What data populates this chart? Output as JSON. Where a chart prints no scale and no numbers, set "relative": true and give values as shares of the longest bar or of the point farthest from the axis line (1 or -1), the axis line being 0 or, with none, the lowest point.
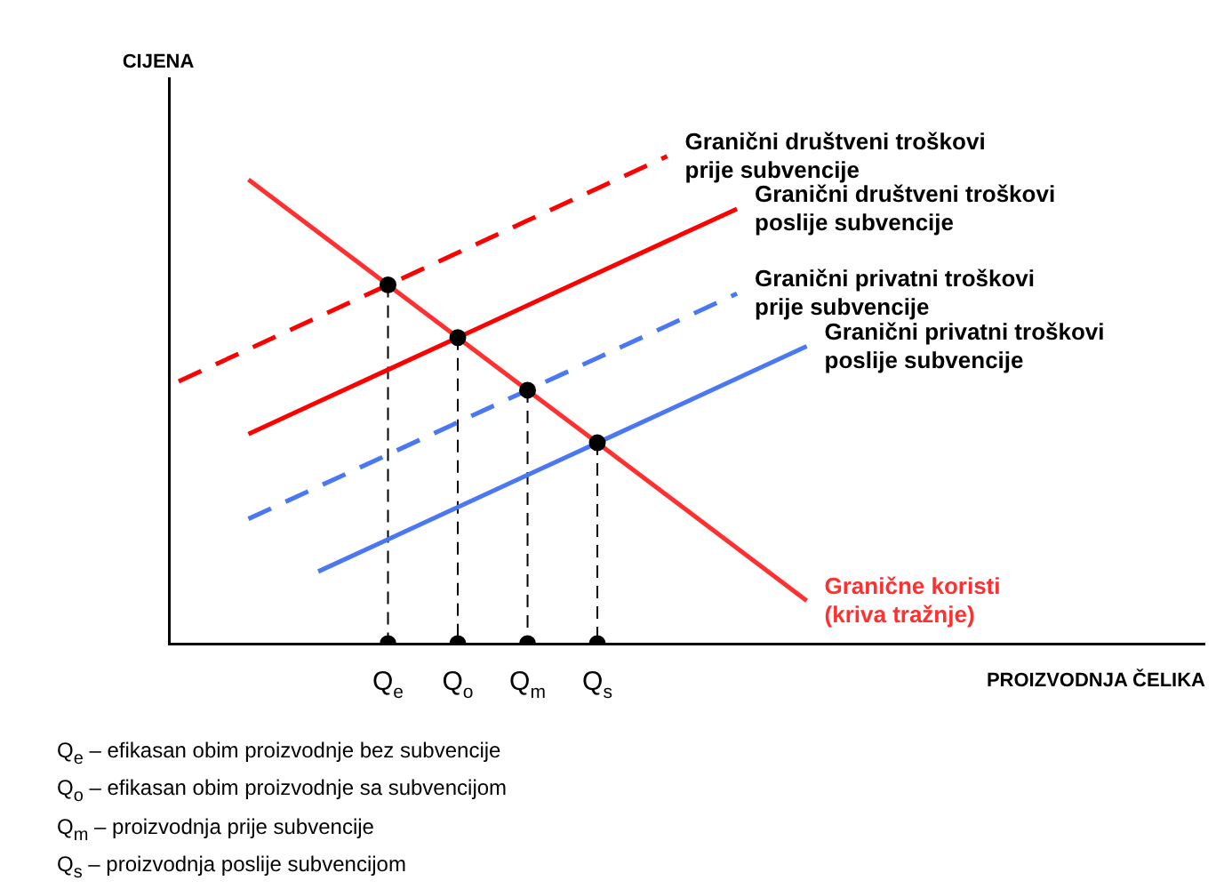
{
  "chart_data": {
    "type": "line",
    "relative": true,
    "ylabel": "CIJENA",
    "xlabel": "PROIZVODNJA ČELIKA",
    "marker": "none",
    "categories": [
      null,
      null,
      null,
      "Q$_{e}$",
      "Q$_{o}$",
      "Q$_{m}$",
      "Q$_{s}$",
      null,
      null,
      null,
      null,
      null,
      null,
      null,
      null
    ],
    "series": [
      {
        "name": "Granični društveni troškovi prije subvencije",
        "color": "#ff0000",
        "line_style": "dashed",
        "values": [
          0.538,
          0.604,
          0.67,
          0.736,
          0.802,
          0.868,
          0.934,
          1,
          null,
          null,
          null,
          null,
          null,
          null,
          null
        ]
      },
      {
        "name": "Granični društveni troškovi poslije subvencije",
        "color": "#ff0000",
        "line_style": "solid",
        "values": [
          null,
          0.43,
          0.496,
          0.562,
          0.628,
          0.694,
          0.76,
          0.826,
          0.892,
          null,
          null,
          null,
          null,
          null,
          null
        ]
      },
      {
        "name": "Granični privatni troškovi prije subvencije",
        "color": "#4a78f5",
        "line_style": "dashed",
        "values": [
          null,
          0.256,
          0.322,
          0.388,
          0.454,
          0.52,
          0.586,
          0.652,
          0.718,
          null,
          null,
          null,
          null,
          null,
          null
        ]
      },
      {
        "name": "Granični privatni troškovi poslije subvencije",
        "color": "#4a78f5",
        "line_style": "solid",
        "values": [
          null,
          null,
          0.148,
          0.214,
          0.28,
          0.346,
          0.412,
          0.478,
          0.544,
          0.61,
          null,
          null,
          null,
          null,
          null
        ]
      },
      {
        "name": "Granične koristi (kriva tražnje)",
        "color": "#ff3030",
        "line_style": "solid",
        "values": [
          null,
          0.952,
          0.844,
          0.736,
          0.628,
          0.52,
          0.412,
          0.304,
          0.196,
          0.088,
          null,
          null,
          null,
          null,
          null
        ]
      },
      {
        "type": "scatter",
        "color": "#000000",
        "marker": "circle",
        "line_style": "dashed",
        "x": [
          "Q$_{e}$",
          "Q$_{o}$",
          "Q$_{m}$",
          "Q$_{s}$",
          "Q$_{e}$",
          "Q$_{o}$",
          "Q$_{m}$",
          "Q$_{s}$"
        ],
        "values": [
          0.736,
          0.628,
          0.52,
          0.412,
          0,
          0,
          0,
          0
        ]
      }
    ],
    "annotations": [
      "Q$_{e}$ – efikasan obim proizvodnje bez subvencije",
      "Q$_{o}$ – efikasan obim proizvodnje sa subvencijom",
      "Q$_{m}$ – proizvodnja prije subvencije",
      "Q$_{s}$ – proizvodnja poslije subvencijom"
    ]
  }
}
